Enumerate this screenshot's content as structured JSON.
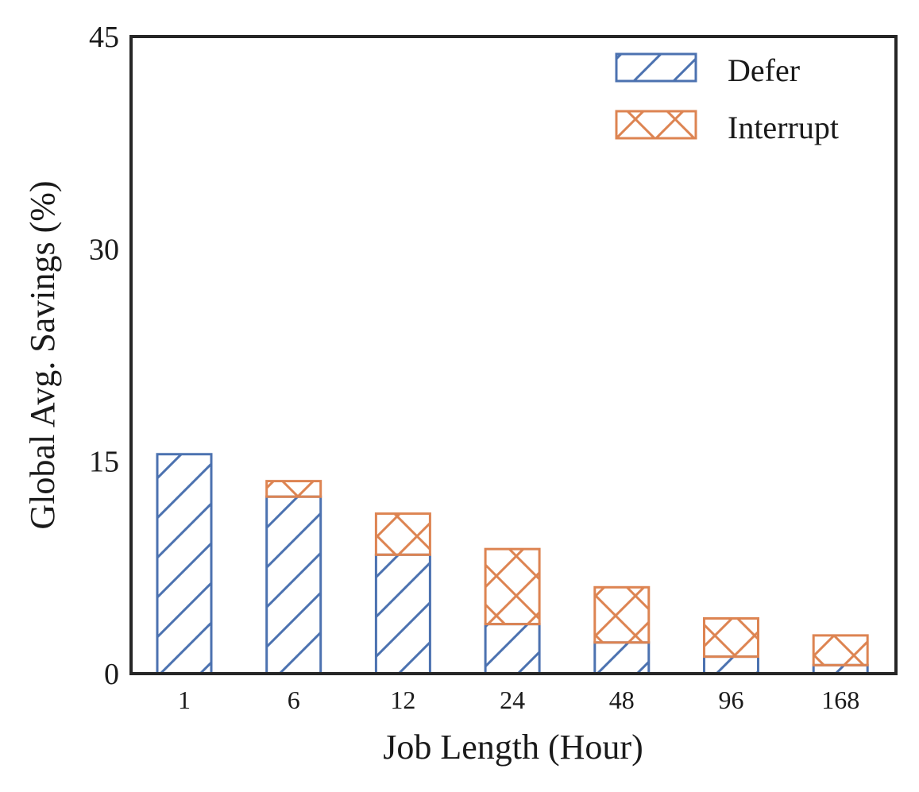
{
  "chart_data": {
    "type": "bar",
    "stacked": true,
    "categories": [
      "1",
      "6",
      "12",
      "24",
      "48",
      "96",
      "168"
    ],
    "series": [
      {
        "name": "Defer",
        "values": [
          15.5,
          12.5,
          8.4,
          3.5,
          2.2,
          1.2,
          0.6
        ],
        "color": "#4c72b0",
        "hatch": "diagonal"
      },
      {
        "name": "Interrupt",
        "values": [
          0.0,
          1.1,
          2.9,
          5.3,
          3.9,
          2.7,
          2.1
        ],
        "color": "#dd8452",
        "hatch": "cross"
      }
    ],
    "xlabel": "Job Length (Hour)",
    "ylabel": "Global Avg. Savings (%)",
    "ylim": [
      0,
      45
    ],
    "yticks": [
      "0",
      "15",
      "30",
      "45"
    ],
    "grid": false,
    "legend": "top-right"
  }
}
